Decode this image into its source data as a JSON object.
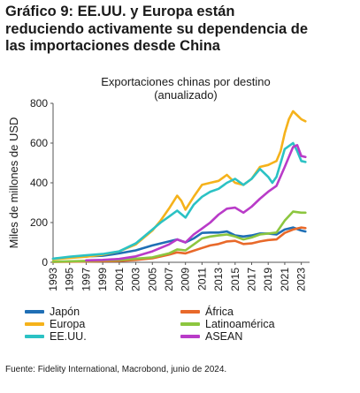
{
  "headline": {
    "line1": "Gráfico 9: EE.UU. y Europa están",
    "line2": "reduciendo activamente su dependencia de",
    "line3": "las importaciones desde China"
  },
  "source": "Fuente: Fidelity International, Macrobond, junio de 2024.",
  "chart_data": {
    "type": "line",
    "title": "Exportaciones chinas por destino",
    "subtitle": "(anualizado)",
    "xlabel": "",
    "ylabel": "Miles de millones de USD",
    "xlim": [
      1993,
      2024
    ],
    "ylim": [
      0,
      800
    ],
    "yticks": [
      0,
      200,
      400,
      600,
      800
    ],
    "xticks": [
      "1993",
      "1995",
      "1997",
      "1999",
      "2001",
      "2003",
      "2005",
      "2007",
      "2009",
      "2011",
      "2013",
      "2015",
      "2017",
      "2019",
      "2021",
      "2023"
    ],
    "grid": false,
    "legend_position": "bottom",
    "series": [
      {
        "name": "Japón",
        "color": "#1f6fb5",
        "x": [
          1993,
          1995,
          1997,
          1999,
          2001,
          2003,
          2005,
          2007,
          2008,
          2009,
          2010,
          2011,
          2012,
          2013,
          2014,
          2015,
          2016,
          2017,
          2018,
          2019,
          2020,
          2021,
          2022,
          2023,
          2023.5
        ],
        "y": [
          18,
          25,
          30,
          33,
          45,
          60,
          85,
          105,
          115,
          100,
          120,
          148,
          150,
          150,
          155,
          135,
          130,
          135,
          145,
          145,
          140,
          165,
          175,
          160,
          155
        ]
      },
      {
        "name": "África",
        "color": "#e8692a",
        "x": [
          1993,
          1997,
          2001,
          2003,
          2005,
          2007,
          2008,
          2009,
          2010,
          2011,
          2012,
          2013,
          2014,
          2015,
          2016,
          2017,
          2018,
          2019,
          2020,
          2021,
          2022,
          2023,
          2023.5
        ],
        "y": [
          2,
          4,
          7,
          12,
          20,
          38,
          50,
          45,
          58,
          72,
          85,
          92,
          105,
          108,
          92,
          95,
          105,
          112,
          115,
          148,
          165,
          175,
          172
        ]
      },
      {
        "name": "Europa",
        "color": "#f5b21b",
        "x": [
          1993,
          1995,
          1997,
          1999,
          2001,
          2003,
          2004,
          2005,
          2006,
          2007,
          2008,
          2008.5,
          2009,
          2010,
          2011,
          2012,
          2013,
          2014,
          2015,
          2016,
          2017,
          2018,
          2019,
          2019.5,
          2020,
          2020.5,
          2021,
          2021.5,
          2022,
          2022.5,
          2023,
          2023.5
        ],
        "y": [
          15,
          22,
          28,
          38,
          55,
          90,
          125,
          160,
          210,
          270,
          335,
          310,
          265,
          330,
          390,
          400,
          410,
          440,
          400,
          390,
          420,
          480,
          490,
          500,
          510,
          560,
          650,
          720,
          760,
          740,
          720,
          710
        ]
      },
      {
        "name": "Latinoamérica",
        "color": "#8cc63f",
        "x": [
          1993,
          1997,
          2001,
          2003,
          2005,
          2007,
          2008,
          2009,
          2010,
          2011,
          2012,
          2013,
          2014,
          2015,
          2016,
          2017,
          2018,
          2019,
          2020,
          2021,
          2022,
          2023,
          2023.5
        ],
        "y": [
          3,
          7,
          12,
          18,
          25,
          45,
          65,
          60,
          90,
          120,
          130,
          135,
          140,
          130,
          115,
          125,
          140,
          145,
          150,
          210,
          255,
          250,
          250
        ]
      },
      {
        "name": "EE.UU.",
        "color": "#2bc2c4",
        "x": [
          1993,
          1995,
          1997,
          1999,
          2001,
          2003,
          2004,
          2005,
          2006,
          2007,
          2008,
          2009,
          2010,
          2011,
          2012,
          2013,
          2014,
          2015,
          2016,
          2017,
          2018,
          2019,
          2019.5,
          2020,
          2020.5,
          2021,
          2022,
          2022.5,
          2023,
          2023.5
        ],
        "y": [
          18,
          28,
          35,
          42,
          55,
          95,
          130,
          165,
          200,
          230,
          260,
          225,
          290,
          330,
          355,
          370,
          400,
          420,
          390,
          420,
          470,
          430,
          400,
          430,
          500,
          570,
          600,
          560,
          510,
          505
        ]
      },
      {
        "name": "ASEAN",
        "color": "#b93bc8",
        "x": [
          1997,
          1999,
          2001,
          2003,
          2005,
          2007,
          2008,
          2009,
          2010,
          2011,
          2012,
          2013,
          2014,
          2015,
          2016,
          2017,
          2018,
          2019,
          2020,
          2021,
          2022,
          2022.5,
          2023,
          2023.5
        ],
        "y": [
          10,
          12,
          17,
          30,
          55,
          90,
          115,
          100,
          140,
          170,
          200,
          240,
          270,
          275,
          250,
          280,
          320,
          355,
          385,
          480,
          580,
          590,
          535,
          530
        ]
      }
    ]
  }
}
